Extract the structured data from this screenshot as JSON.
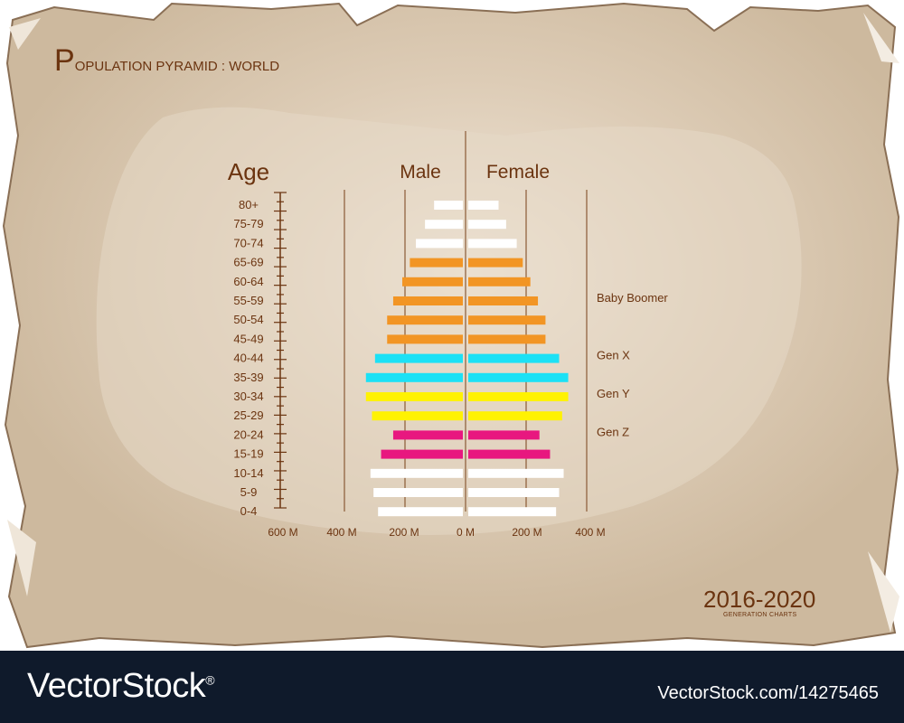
{
  "page": {
    "title_initial": "P",
    "title_rest": "OPULATION PYRAMID : WORLD",
    "years": "2016-2020",
    "subtitle_small": "GENERATION CHARTS"
  },
  "footer": {
    "brand": "VectorStock",
    "registered": "®",
    "image_id": "VectorStock.com/14275465"
  },
  "colors": {
    "paper": "#d6c5ad",
    "ink": "#6b3410",
    "white_bar": "#ffffff",
    "orange": "#f29524",
    "cyan": "#1ce1f5",
    "yellow": "#fff202",
    "magenta": "#e8177f",
    "footer_bg": "#0f1a2b"
  },
  "chart_data": {
    "type": "bar",
    "orientation": "horizontal-pyramid",
    "age_label": "Age",
    "male_label": "Male",
    "female_label": "Female",
    "categories": [
      "80+",
      "75-79",
      "70-74",
      "65-69",
      "60-64",
      "55-59",
      "50-54",
      "45-49",
      "40-44",
      "35-39",
      "30-34",
      "25-29",
      "20-24",
      "15-19",
      "10-14",
      "5-9",
      "0-4"
    ],
    "series": [
      {
        "name": "Male",
        "values": [
          95,
          125,
          155,
          175,
          200,
          230,
          250,
          250,
          290,
          320,
          320,
          300,
          230,
          270,
          305,
          295,
          280
        ]
      },
      {
        "name": "Female",
        "values": [
          100,
          125,
          160,
          180,
          205,
          230,
          255,
          255,
          300,
          330,
          330,
          310,
          235,
          270,
          315,
          300,
          290
        ]
      }
    ],
    "bar_colors": [
      "white",
      "white",
      "white",
      "orange",
      "orange",
      "orange",
      "orange",
      "orange",
      "cyan",
      "cyan",
      "yellow",
      "yellow",
      "magenta",
      "magenta",
      "white",
      "white",
      "white"
    ],
    "x_ticks_left": [
      "600 M",
      "400 M",
      "200 M",
      "0 M"
    ],
    "x_ticks_right": [
      "200 M",
      "400 M"
    ],
    "generations": [
      {
        "label": "Baby Boomer",
        "at": "55-59"
      },
      {
        "label": "Gen X",
        "at": "40-44"
      },
      {
        "label": "Gen Y",
        "at": "30-34"
      },
      {
        "label": "Gen Z",
        "at": "20-24"
      }
    ],
    "xlim": [
      -600,
      400
    ],
    "unit": "M"
  }
}
